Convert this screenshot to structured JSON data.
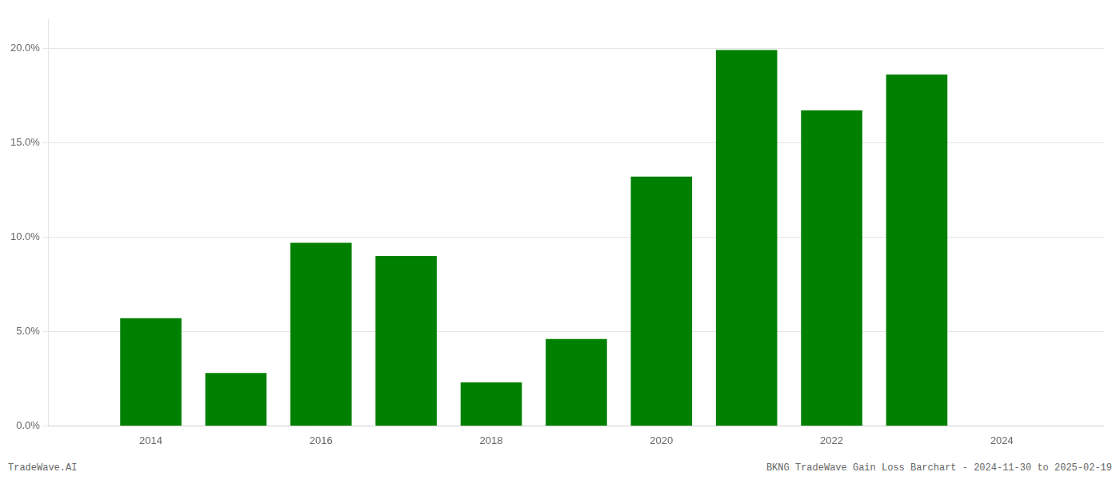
{
  "chart_data": {
    "type": "bar",
    "x": [
      2014,
      2015,
      2016,
      2017,
      2018,
      2019,
      2020,
      2021,
      2022,
      2023
    ],
    "values": [
      0.057,
      0.028,
      0.097,
      0.09,
      0.023,
      0.046,
      0.132,
      0.199,
      0.167,
      0.186
    ],
    "color": "#008000",
    "xlim": [
      2012.8,
      2025.2
    ],
    "xticks": [
      2014,
      2016,
      2018,
      2020,
      2022,
      2024
    ],
    "ylim": [
      0.0,
      0.215
    ],
    "yticks": [
      {
        "value": 0.0,
        "label": "0.0%"
      },
      {
        "value": 0.05,
        "label": "5.0%"
      },
      {
        "value": 0.1,
        "label": "10.0%"
      },
      {
        "value": 0.15,
        "label": "15.0%"
      },
      {
        "value": 0.2,
        "label": "20.0%"
      }
    ],
    "grid": "y",
    "annotations": [
      "TradeWave.AI",
      "BKNG TradeWave Gain Loss Barchart - 2024-11-30 to 2025-02-19"
    ]
  }
}
